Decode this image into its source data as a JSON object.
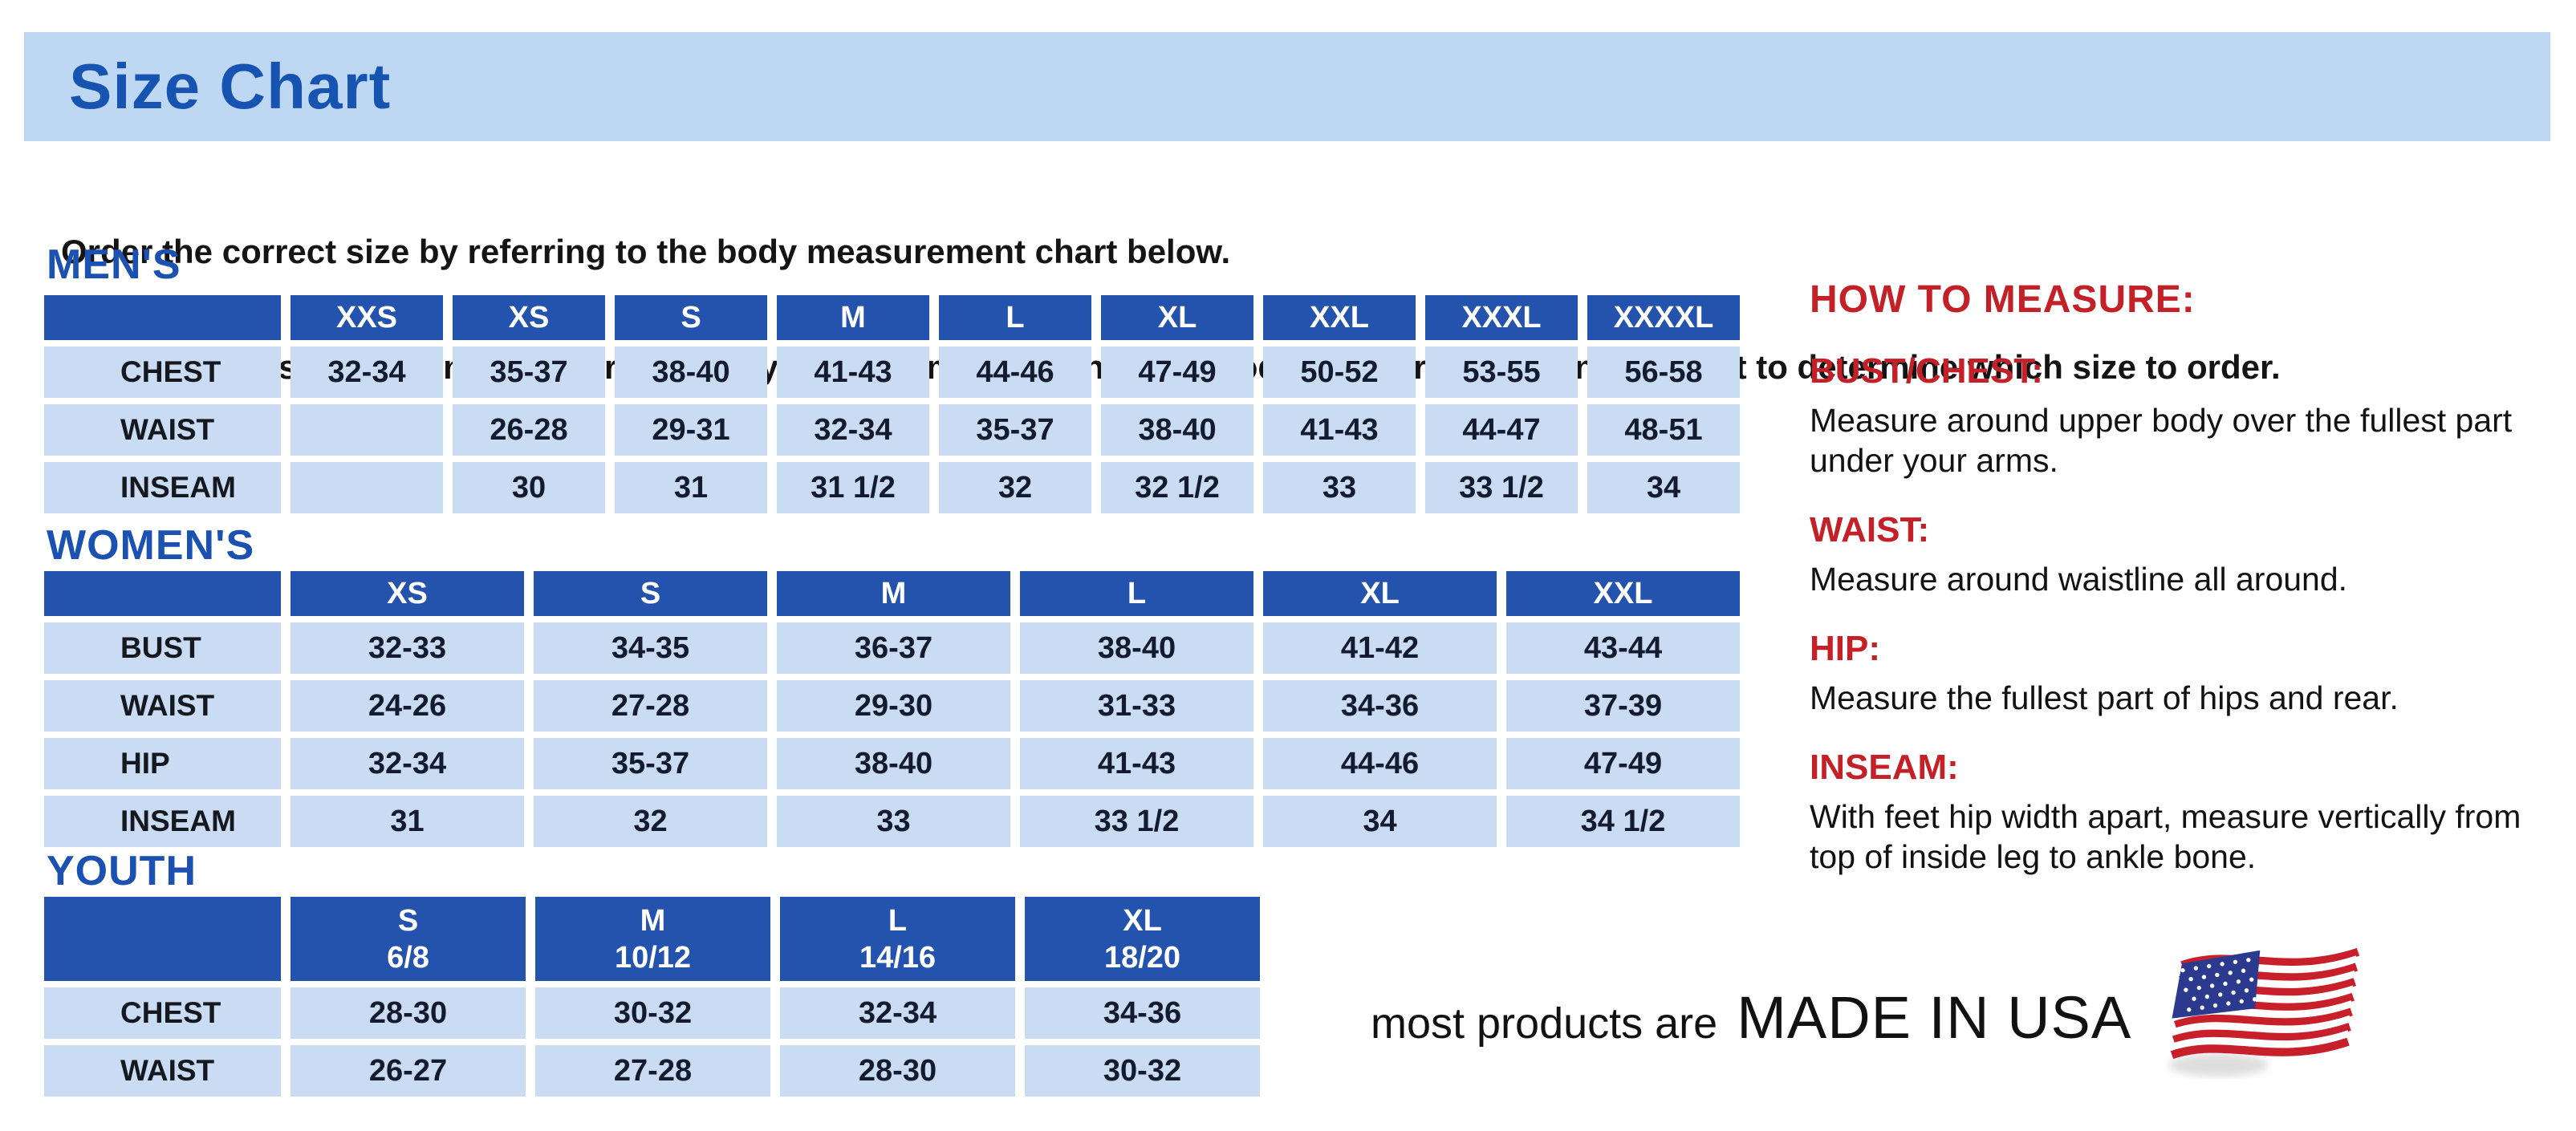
{
  "title": "Size Chart",
  "intro": {
    "line1": "Order the correct size by referring to the body measurement chart below.",
    "line2": "Measurements shown on size chart are body measurements.  Find your body measurements on the chart to determine which size to order."
  },
  "tables": {
    "mens": {
      "heading": "MEN'S",
      "columns": [
        "XXS",
        "XS",
        "S",
        "M",
        "L",
        "XL",
        "XXL",
        "XXXL",
        "XXXXL"
      ],
      "rows": [
        {
          "label": "CHEST",
          "values": [
            "32-34",
            "35-37",
            "38-40",
            "41-43",
            "44-46",
            "47-49",
            "50-52",
            "53-55",
            "56-58"
          ]
        },
        {
          "label": "WAIST",
          "values": [
            "",
            "26-28",
            "29-31",
            "32-34",
            "35-37",
            "38-40",
            "41-43",
            "44-47",
            "48-51"
          ]
        },
        {
          "label": "INSEAM",
          "values": [
            "",
            "30",
            "31",
            "31 1/2",
            "32",
            "32 1/2",
            "33",
            "33 1/2",
            "34"
          ]
        }
      ]
    },
    "womens": {
      "heading": "WOMEN'S",
      "columns": [
        "XS",
        "S",
        "M",
        "L",
        "XL",
        "XXL"
      ],
      "rows": [
        {
          "label": "BUST",
          "values": [
            "32-33",
            "34-35",
            "36-37",
            "38-40",
            "41-42",
            "43-44"
          ]
        },
        {
          "label": "WAIST",
          "values": [
            "24-26",
            "27-28",
            "29-30",
            "31-33",
            "34-36",
            "37-39"
          ]
        },
        {
          "label": "HIP",
          "values": [
            "32-34",
            "35-37",
            "38-40",
            "41-43",
            "44-46",
            "47-49"
          ]
        },
        {
          "label": "INSEAM",
          "values": [
            "31",
            "32",
            "33",
            "33 1/2",
            "34",
            "34 1/2"
          ]
        }
      ]
    },
    "youth": {
      "heading": "YOUTH",
      "columns": [
        {
          "size": "S",
          "group": "6/8"
        },
        {
          "size": "M",
          "group": "10/12"
        },
        {
          "size": "L",
          "group": "14/16"
        },
        {
          "size": "XL",
          "group": "18/20"
        }
      ],
      "rows": [
        {
          "label": "CHEST",
          "values": [
            "28-30",
            "30-32",
            "32-34",
            "34-36"
          ]
        },
        {
          "label": "WAIST",
          "values": [
            "26-27",
            "27-28",
            "28-30",
            "30-32"
          ]
        }
      ]
    }
  },
  "how_to_measure": {
    "heading": "HOW TO MEASURE:",
    "items": [
      {
        "label": "BUST/CHEST:",
        "text": "Measure around upper body over the fullest part under your arms."
      },
      {
        "label": "WAIST:",
        "text": "Measure around waistline all around."
      },
      {
        "label": "HIP:",
        "text": "Measure the fullest part of hips and rear."
      },
      {
        "label": "INSEAM:",
        "text": "With feet hip width apart, measure vertically from top of inside leg to ankle bone."
      }
    ]
  },
  "footer": {
    "prefix": "most products are",
    "emphasis": "MADE IN USA",
    "flag_icon": "us-flag-icon"
  },
  "colors": {
    "header_blue": "#2453ad",
    "cell_blue": "#cadcf4",
    "banner_blue": "#bed8f4",
    "brand_blue": "#1b51b0",
    "accent_red": "#c32027",
    "flag_red": "#c8202a",
    "flag_navy": "#2b3a8e"
  }
}
